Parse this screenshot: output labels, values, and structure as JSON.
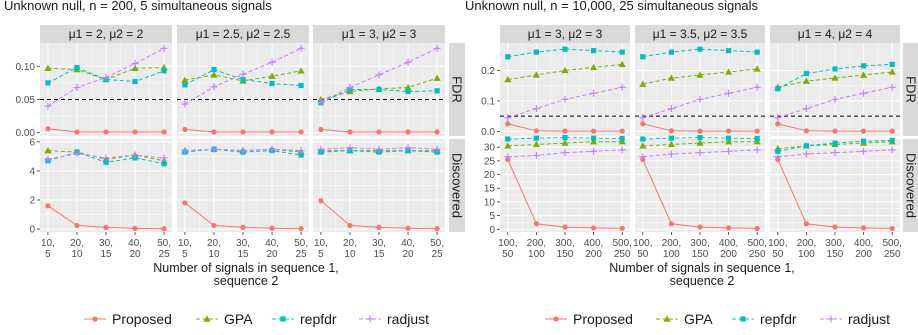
{
  "chart_data": [
    {
      "type": "line",
      "title": "Unknown null, n = 200, 5 simultaneous signals",
      "xlabel": "Number of signals in sequence 1,\nsequence 2",
      "x": [
        "10,\n5",
        "20,\n10",
        "30,\n15",
        "40,\n20",
        "50,\n25"
      ],
      "panels": [
        "μ1 = 2, μ2 = 2",
        "μ1 = 2.5, μ2 = 2.5",
        "μ1 = 3, μ2 = 3"
      ],
      "rows": [
        "FDR",
        "Discovered"
      ],
      "FDR": {
        "ylim": [
          -0.005,
          0.135
        ],
        "yticks": [
          0.0,
          0.05,
          0.1
        ],
        "ytick_labels": [
          "0.00",
          "0.05",
          "0.10"
        ],
        "reference_line": 0.05,
        "series": [
          {
            "name": "Proposed",
            "values": [
              [
                0.006,
                0.001,
                0.001,
                0.001,
                0.001
              ],
              [
                0.005,
                0.001,
                0.001,
                0.001,
                0.001
              ],
              [
                0.005,
                0.001,
                0.001,
                0.001,
                0.001
              ]
            ]
          },
          {
            "name": "GPA",
            "values": [
              [
                0.097,
                0.095,
                0.08,
                0.097,
                0.098
              ],
              [
                0.079,
                0.087,
                0.078,
                0.085,
                0.093
              ],
              [
                0.05,
                0.062,
                0.066,
                0.068,
                0.082
              ]
            ]
          },
          {
            "name": "repfdr",
            "values": [
              [
                0.075,
                0.098,
                0.08,
                0.077,
                0.093
              ],
              [
                0.072,
                0.095,
                0.08,
                0.074,
                0.071
              ],
              [
                0.045,
                0.065,
                0.065,
                0.062,
                0.063
              ]
            ]
          },
          {
            "name": "radjust",
            "values": [
              [
                0.04,
                0.068,
                0.083,
                0.104,
                0.127
              ],
              [
                0.043,
                0.069,
                0.088,
                0.106,
                0.127
              ],
              [
                0.046,
                0.068,
                0.087,
                0.106,
                0.127
              ]
            ]
          }
        ]
      },
      "Discovered": {
        "ylim": [
          -0.2,
          6.2
        ],
        "yticks": [
          0,
          2,
          4,
          6
        ],
        "ytick_labels": [
          "0",
          "2",
          "4",
          "6"
        ],
        "series": [
          {
            "name": "Proposed",
            "values": [
              [
                1.6,
                0.25,
                0.12,
                0.05,
                0.03
              ],
              [
                1.8,
                0.25,
                0.12,
                0.06,
                0.03
              ],
              [
                1.95,
                0.25,
                0.12,
                0.06,
                0.03
              ]
            ]
          },
          {
            "name": "GPA",
            "values": [
              [
                5.4,
                5.3,
                4.8,
                5.1,
                4.7
              ],
              [
                5.4,
                5.5,
                5.4,
                5.5,
                5.3
              ],
              [
                5.4,
                5.4,
                5.4,
                5.4,
                5.4
              ]
            ]
          },
          {
            "name": "repfdr",
            "values": [
              [
                4.7,
                5.3,
                4.6,
                4.9,
                4.5
              ],
              [
                5.3,
                5.5,
                5.3,
                5.4,
                5.1
              ],
              [
                5.3,
                5.4,
                5.3,
                5.4,
                5.3
              ]
            ]
          },
          {
            "name": "radjust",
            "values": [
              [
                4.8,
                5.2,
                4.9,
                5.1,
                4.9
              ],
              [
                5.4,
                5.5,
                5.4,
                5.5,
                5.4
              ],
              [
                5.5,
                5.6,
                5.5,
                5.6,
                5.5
              ]
            ]
          }
        ]
      }
    },
    {
      "type": "line",
      "title": "Unknown null, n = 10,000, 25 simultaneous signals",
      "xlabel": "Number of signals in sequence 1,\nsequence 2",
      "x": [
        "100,\n50",
        "200,\n100",
        "300,\n150",
        "400,\n200",
        "500,\n250"
      ],
      "panels": [
        "μ1 = 3, μ2 = 3",
        "μ1 = 3.5, μ2 = 3.5",
        "μ1 = 4, μ2 = 4"
      ],
      "rows": [
        "FDR",
        "Discovered"
      ],
      "FDR": {
        "ylim": [
          -0.015,
          0.29
        ],
        "yticks": [
          0.0,
          0.1,
          0.2
        ],
        "ytick_labels": [
          "0.0",
          "0.1",
          "0.2"
        ],
        "reference_line": 0.05,
        "series": [
          {
            "name": "Proposed",
            "values": [
              [
                0.025,
                0.002,
                0.001,
                0.001,
                0.001
              ],
              [
                0.025,
                0.002,
                0.001,
                0.001,
                0.001
              ],
              [
                0.025,
                0.002,
                0.001,
                0.001,
                0.001
              ]
            ]
          },
          {
            "name": "GPA",
            "values": [
              [
                0.17,
                0.185,
                0.2,
                0.21,
                0.22
              ],
              [
                0.155,
                0.175,
                0.185,
                0.195,
                0.205
              ],
              [
                0.145,
                0.165,
                0.175,
                0.185,
                0.195
              ]
            ]
          },
          {
            "name": "repfdr",
            "values": [
              [
                0.245,
                0.26,
                0.27,
                0.265,
                0.26
              ],
              [
                0.245,
                0.26,
                0.27,
                0.265,
                0.26
              ],
              [
                0.14,
                0.19,
                0.205,
                0.215,
                0.22
              ]
            ]
          },
          {
            "name": "radjust",
            "values": [
              [
                0.045,
                0.075,
                0.105,
                0.125,
                0.145
              ],
              [
                0.045,
                0.075,
                0.105,
                0.125,
                0.145
              ],
              [
                0.045,
                0.075,
                0.105,
                0.125,
                0.145
              ]
            ]
          }
        ]
      },
      "Discovered": {
        "ylim": [
          -1,
          33
        ],
        "yticks": [
          0,
          5,
          10,
          15,
          20,
          25,
          30
        ],
        "ytick_labels": [
          "0",
          "5",
          "10",
          "15",
          "20",
          "25",
          "30"
        ],
        "series": [
          {
            "name": "Proposed",
            "values": [
              [
                25.5,
                2.0,
                0.8,
                0.5,
                0.3
              ],
              [
                25.5,
                2.0,
                0.8,
                0.5,
                0.3
              ],
              [
                25.5,
                2.0,
                0.8,
                0.5,
                0.3
              ]
            ]
          },
          {
            "name": "GPA",
            "values": [
              [
                30.5,
                31.0,
                31.5,
                32.0,
                32.0
              ],
              [
                30.5,
                31.0,
                31.5,
                32.0,
                32.0
              ],
              [
                29.5,
                30.5,
                31.0,
                31.5,
                32.0
              ]
            ]
          },
          {
            "name": "repfdr",
            "values": [
              [
                33.0,
                33.3,
                33.5,
                33.3,
                33.2
              ],
              [
                33.0,
                33.3,
                33.5,
                33.3,
                33.2
              ],
              [
                28.5,
                30.5,
                31.5,
                32.2,
                32.5
              ]
            ]
          },
          {
            "name": "radjust",
            "values": [
              [
                26.5,
                27.0,
                28.0,
                28.5,
                29.0
              ],
              [
                26.5,
                27.5,
                28.0,
                28.5,
                29.0
              ],
              [
                26.5,
                27.5,
                28.0,
                28.5,
                29.0
              ]
            ]
          }
        ]
      }
    }
  ],
  "legend": {
    "placement": "bottom",
    "items": [
      {
        "name": "Proposed",
        "color": "#F8766D",
        "marker": "circle",
        "dash": "solid"
      },
      {
        "name": "GPA",
        "color": "#7CAE00",
        "marker": "triangle",
        "dash": "dashed"
      },
      {
        "name": "repfdr",
        "color": "#00BFC4",
        "marker": "square",
        "dash": "dashed"
      },
      {
        "name": "radjust",
        "color": "#C77CFF",
        "marker": "plus",
        "dash": "dashed"
      }
    ]
  },
  "style": {
    "panel_bg": "#EBEBEB",
    "strip_bg": "#D9D9D9",
    "grid_color": "#FFFFFF",
    "text_color": "#1A1A1A",
    "tick_text_color": "#4D4D4D",
    "ref_line_color": "#000000"
  }
}
